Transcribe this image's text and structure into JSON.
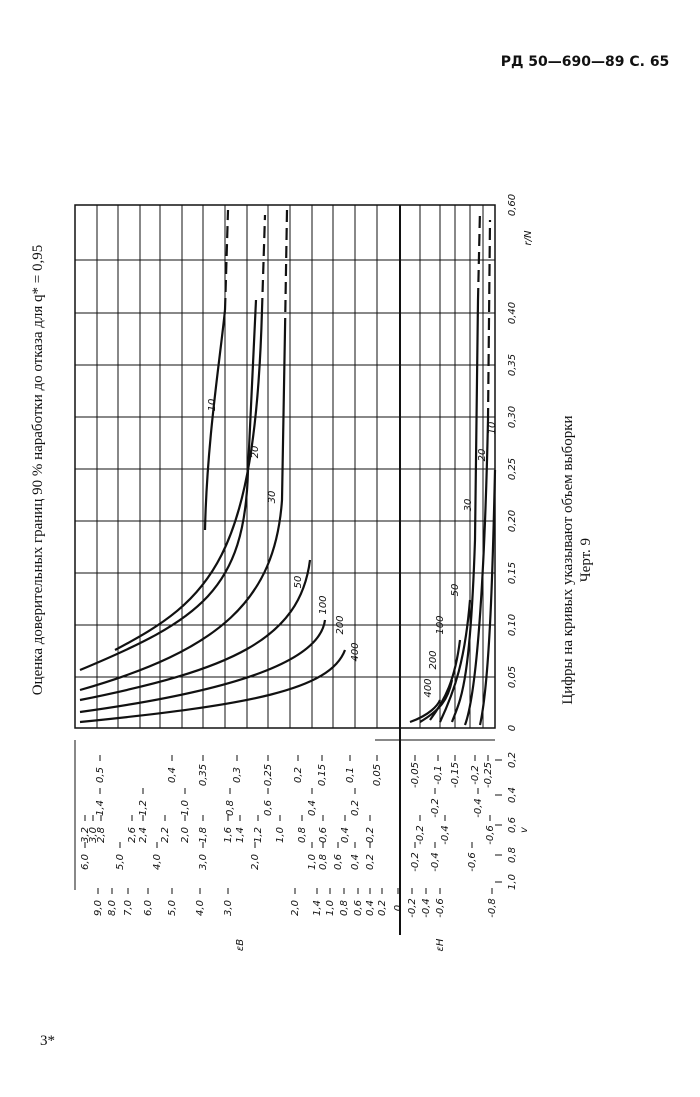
{
  "header": "РД 50—690—89 С. 65",
  "title": "Оценка доверительных границ 90 % наработки до отказа для q* = 0,95",
  "axis": {
    "label": "r/N",
    "ticks": [
      "0",
      "0,05",
      "0,10",
      "0,15",
      "0,20",
      "0,25",
      "0,30",
      "0,35",
      "0,40",
      "0,60"
    ]
  },
  "v_axis": {
    "label": "v",
    "ticks": [
      "0,2",
      "0,4",
      "0,6",
      "0,8",
      "1,0"
    ]
  },
  "scales": [
    [
      "0,5",
      "0,4",
      "0,35",
      "0,3",
      "0,25",
      "0,2",
      "0,15",
      "0,1",
      "0,05",
      "-0,05",
      "-0,1",
      "-0,15",
      "-0,2",
      "-0,25"
    ],
    [
      "1,4",
      "1,2",
      "1,0",
      "0,8",
      "0,6",
      "0,4",
      "0,2",
      "-0,2",
      "-0,4"
    ],
    [
      "3,2",
      "3,0",
      "2,8",
      "2,6",
      "2,4",
      "2,2",
      "2,0",
      "1,8",
      "1,6",
      "1,4",
      "1,2",
      "1,0",
      "0,8",
      "0,6",
      "0,4",
      "0,2",
      "-0,2",
      "-0,4",
      "-0,6"
    ],
    [
      "6,0",
      "5,0",
      "4,0",
      "3,0",
      "2,0",
      "1,0",
      "0,8",
      "0,6",
      "0,4",
      "0,2",
      "-0,2",
      "-0,4",
      "-0,6"
    ],
    [
      "9,0",
      "8,0",
      "7,0",
      "6,0",
      "5,0",
      "4,0",
      "3,0",
      "2,0",
      "1,4",
      "1,0",
      "0,8",
      "0,6",
      "0,4",
      "0,2",
      "0",
      "-0,2",
      "-0,4",
      "-0,6",
      "-0,8"
    ]
  ],
  "epsilon_upper": "εB",
  "epsilon_lower": "εH",
  "upper_curves": [
    "10",
    "20",
    "30",
    "50",
    "100",
    "200",
    "400"
  ],
  "lower_curves": [
    "10",
    "20",
    "30",
    "50",
    "100",
    "200",
    "400"
  ],
  "caption": "Цифры на кривых указывают объем выборки",
  "figure_label": "Черт. 9",
  "footer": "3*"
}
